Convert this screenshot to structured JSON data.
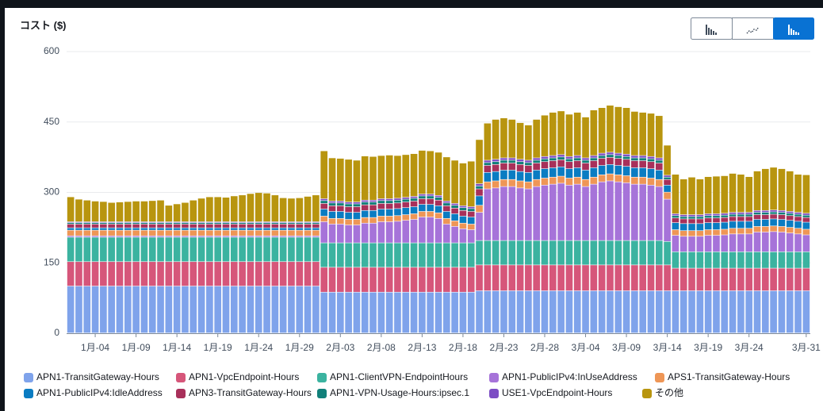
{
  "chart_data": {
    "type": "stacked_bar",
    "title": "コスト ($)",
    "categories": [
      null,
      null,
      null,
      "1月-04",
      null,
      null,
      null,
      null,
      "1月-09",
      null,
      null,
      null,
      null,
      "1月-14",
      null,
      null,
      null,
      null,
      "1月-19",
      null,
      null,
      null,
      null,
      "1月-24",
      null,
      null,
      null,
      null,
      "1月-29",
      null,
      null,
      null,
      null,
      "2月-03",
      null,
      null,
      null,
      null,
      "2月-08",
      null,
      null,
      null,
      null,
      "2月-13",
      null,
      null,
      null,
      null,
      "2月-18",
      null,
      null,
      null,
      null,
      "2月-23",
      null,
      null,
      null,
      null,
      "2月-28",
      null,
      null,
      null,
      null,
      "3月-04",
      null,
      null,
      null,
      null,
      "3月-09",
      null,
      null,
      null,
      null,
      "3月-14",
      null,
      null,
      null,
      null,
      "3月-19",
      null,
      null,
      null,
      null,
      "3月-24",
      null,
      null,
      null,
      null,
      null,
      null,
      "3月-31"
    ],
    "ylim": [
      0,
      600
    ],
    "yticks": [
      0,
      150,
      300,
      450,
      600
    ],
    "grid": true,
    "series": [
      {
        "name": "APN1-TransitGateway-Hours",
        "color": "#7fa3eb",
        "values": [
          100,
          100,
          100,
          100,
          100,
          100,
          100,
          100,
          100,
          100,
          100,
          100,
          100,
          100,
          100,
          100,
          100,
          100,
          100,
          100,
          100,
          100,
          100,
          100,
          100,
          100,
          100,
          100,
          100,
          100,
          100,
          87,
          87,
          87,
          87,
          87,
          87,
          87,
          87,
          87,
          87,
          87,
          87,
          87,
          87,
          87,
          87,
          87,
          87,
          87,
          90,
          90,
          90,
          90,
          90,
          90,
          90,
          90,
          90,
          90,
          90,
          90,
          90,
          90,
          90,
          90,
          90,
          90,
          90,
          90,
          90,
          90,
          90,
          90,
          90,
          90,
          90,
          90,
          90,
          90,
          90,
          90,
          90,
          90,
          90,
          90,
          90,
          90,
          90,
          90,
          90
        ]
      },
      {
        "name": "APN1-VpcEndpoint-Hours",
        "color": "#d6567a",
        "values": [
          52,
          52,
          52,
          52,
          52,
          52,
          52,
          52,
          52,
          52,
          52,
          52,
          52,
          52,
          52,
          52,
          52,
          52,
          52,
          52,
          52,
          52,
          52,
          52,
          52,
          52,
          52,
          52,
          52,
          52,
          52,
          53,
          53,
          53,
          53,
          53,
          53,
          53,
          53,
          53,
          53,
          53,
          53,
          53,
          53,
          53,
          53,
          53,
          53,
          53,
          55,
          55,
          55,
          55,
          55,
          55,
          55,
          55,
          55,
          55,
          55,
          55,
          55,
          55,
          55,
          55,
          55,
          55,
          55,
          55,
          55,
          55,
          55,
          55,
          48,
          48,
          48,
          48,
          48,
          48,
          48,
          48,
          48,
          48,
          48,
          48,
          48,
          48,
          48,
          48,
          48
        ]
      },
      {
        "name": "APN1-ClientVPN-EndpointHours",
        "color": "#3bb3a0",
        "values": [
          52,
          52,
          52,
          52,
          52,
          52,
          52,
          52,
          52,
          52,
          52,
          52,
          52,
          52,
          52,
          52,
          52,
          52,
          52,
          52,
          52,
          52,
          52,
          52,
          52,
          52,
          52,
          52,
          52,
          52,
          52,
          52,
          52,
          52,
          52,
          52,
          52,
          52,
          52,
          52,
          52,
          52,
          52,
          52,
          52,
          52,
          52,
          52,
          52,
          52,
          52,
          52,
          52,
          52,
          52,
          52,
          52,
          52,
          52,
          52,
          52,
          52,
          52,
          52,
          52,
          52,
          52,
          52,
          52,
          52,
          52,
          52,
          52,
          50,
          35,
          35,
          35,
          35,
          35,
          35,
          35,
          35,
          35,
          35,
          35,
          35,
          35,
          35,
          35,
          35,
          35
        ]
      },
      {
        "name": "APN1-PublicIPv4:InUseAddress",
        "color": "#a673d9",
        "values": [
          3,
          3,
          3,
          3,
          3,
          3,
          3,
          3,
          3,
          3,
          3,
          3,
          3,
          3,
          3,
          3,
          3,
          3,
          3,
          3,
          3,
          3,
          3,
          3,
          3,
          3,
          3,
          3,
          3,
          3,
          3,
          45,
          40,
          40,
          38,
          38,
          42,
          42,
          45,
          45,
          46,
          48,
          50,
          55,
          55,
          52,
          40,
          35,
          30,
          28,
          60,
          110,
          112,
          115,
          115,
          112,
          110,
          115,
          118,
          120,
          122,
          118,
          120,
          115,
          120,
          125,
          127,
          125,
          123,
          120,
          120,
          118,
          115,
          90,
          35,
          33,
          33,
          33,
          35,
          35,
          36,
          38,
          38,
          38,
          42,
          42,
          43,
          42,
          40,
          38,
          36
        ]
      },
      {
        "name": "APS1-TransitGateway-Hours",
        "color": "#ee9656",
        "values": [
          12,
          12,
          12,
          12,
          12,
          12,
          12,
          12,
          12,
          12,
          12,
          12,
          12,
          12,
          12,
          12,
          12,
          12,
          12,
          12,
          12,
          12,
          12,
          12,
          12,
          12,
          12,
          12,
          12,
          12,
          12,
          12,
          12,
          12,
          12,
          12,
          12,
          12,
          12,
          12,
          12,
          12,
          12,
          12,
          12,
          12,
          12,
          12,
          12,
          12,
          15,
          15,
          15,
          15,
          15,
          15,
          15,
          15,
          15,
          15,
          15,
          15,
          15,
          15,
          15,
          15,
          15,
          15,
          15,
          15,
          15,
          15,
          15,
          15,
          12,
          12,
          12,
          12,
          12,
          12,
          12,
          12,
          12,
          12,
          12,
          12,
          12,
          12,
          12,
          12,
          12
        ]
      },
      {
        "name": "APN1-PublicIPv4:IdleAddress",
        "color": "#0a7cc2",
        "values": [
          5,
          5,
          5,
          5,
          5,
          5,
          5,
          5,
          5,
          5,
          5,
          5,
          5,
          5,
          5,
          5,
          5,
          5,
          5,
          5,
          5,
          5,
          5,
          5,
          5,
          5,
          5,
          5,
          5,
          5,
          5,
          15,
          15,
          15,
          15,
          15,
          15,
          15,
          15,
          15,
          15,
          15,
          15,
          15,
          15,
          15,
          15,
          15,
          15,
          15,
          20,
          20,
          20,
          20,
          20,
          20,
          20,
          20,
          20,
          20,
          20,
          20,
          20,
          20,
          20,
          20,
          20,
          20,
          20,
          20,
          20,
          20,
          20,
          15,
          15,
          15,
          15,
          15,
          15,
          15,
          15,
          15,
          15,
          15,
          15,
          15,
          15,
          15,
          15,
          15,
          15
        ]
      },
      {
        "name": "APN3-TransitGateway-Hours",
        "color": "#a8305a",
        "values": [
          8,
          8,
          8,
          8,
          8,
          8,
          8,
          8,
          8,
          8,
          8,
          8,
          8,
          8,
          8,
          8,
          8,
          8,
          8,
          8,
          8,
          8,
          8,
          8,
          8,
          8,
          8,
          8,
          8,
          8,
          8,
          12,
          12,
          12,
          12,
          12,
          12,
          12,
          12,
          12,
          12,
          12,
          12,
          12,
          12,
          12,
          12,
          12,
          12,
          12,
          15,
          15,
          15,
          15,
          15,
          15,
          15,
          15,
          15,
          15,
          15,
          15,
          15,
          15,
          15,
          15,
          15,
          15,
          15,
          15,
          15,
          15,
          15,
          12,
          10,
          10,
          10,
          10,
          10,
          10,
          10,
          10,
          10,
          10,
          10,
          10,
          10,
          10,
          10,
          10,
          10
        ]
      },
      {
        "name": "APN1-VPN-Usage-Hours:ipsec.1",
        "color": "#11807a",
        "values": [
          3,
          3,
          3,
          3,
          3,
          3,
          3,
          3,
          3,
          3,
          3,
          3,
          3,
          3,
          3,
          3,
          3,
          3,
          3,
          3,
          3,
          3,
          3,
          3,
          3,
          3,
          3,
          3,
          3,
          3,
          3,
          6,
          6,
          6,
          6,
          6,
          6,
          6,
          6,
          6,
          6,
          6,
          6,
          6,
          6,
          6,
          6,
          6,
          6,
          6,
          6,
          6,
          6,
          6,
          6,
          6,
          6,
          6,
          6,
          6,
          6,
          6,
          6,
          6,
          6,
          6,
          6,
          6,
          6,
          6,
          6,
          6,
          6,
          5,
          5,
          5,
          5,
          5,
          5,
          5,
          5,
          5,
          5,
          5,
          5,
          5,
          5,
          5,
          5,
          5,
          5
        ]
      },
      {
        "name": "USE1-VpcEndpoint-Hours",
        "color": "#7c4dc4",
        "values": [
          2,
          2,
          2,
          2,
          2,
          2,
          2,
          2,
          2,
          2,
          2,
          2,
          2,
          2,
          2,
          2,
          2,
          2,
          2,
          2,
          2,
          2,
          2,
          2,
          2,
          2,
          2,
          2,
          2,
          2,
          2,
          4,
          4,
          4,
          4,
          4,
          4,
          4,
          4,
          4,
          4,
          4,
          4,
          4,
          4,
          4,
          4,
          4,
          4,
          4,
          5,
          5,
          5,
          5,
          5,
          5,
          5,
          5,
          5,
          5,
          5,
          5,
          5,
          5,
          5,
          5,
          5,
          5,
          5,
          5,
          5,
          5,
          5,
          4,
          4,
          4,
          4,
          4,
          4,
          4,
          4,
          4,
          4,
          4,
          4,
          4,
          4,
          4,
          4,
          4,
          4
        ]
      },
      {
        "name": "その他",
        "color": "#b8950f",
        "values": [
          53,
          48,
          46,
          44,
          43,
          41,
          42,
          43,
          44,
          44,
          45,
          46,
          35,
          38,
          41,
          46,
          50,
          53,
          53,
          52,
          55,
          57,
          60,
          62,
          61,
          57,
          51,
          50,
          51,
          54,
          57,
          102,
          92,
          91,
          91,
          89,
          94,
          93,
          92,
          93,
          91,
          91,
          91,
          93,
          92,
          92,
          94,
          92,
          91,
          97,
          94,
          79,
          85,
          85,
          82,
          78,
          75,
          82,
          88,
          92,
          93,
          90,
          92,
          87,
          97,
          97,
          100,
          99,
          99,
          94,
          92,
          92,
          90,
          64,
          84,
          76,
          80,
          76,
          79,
          80,
          80,
          83,
          81,
          76,
          84,
          89,
          91,
          89,
          86,
          81,
          82
        ]
      }
    ]
  }
}
